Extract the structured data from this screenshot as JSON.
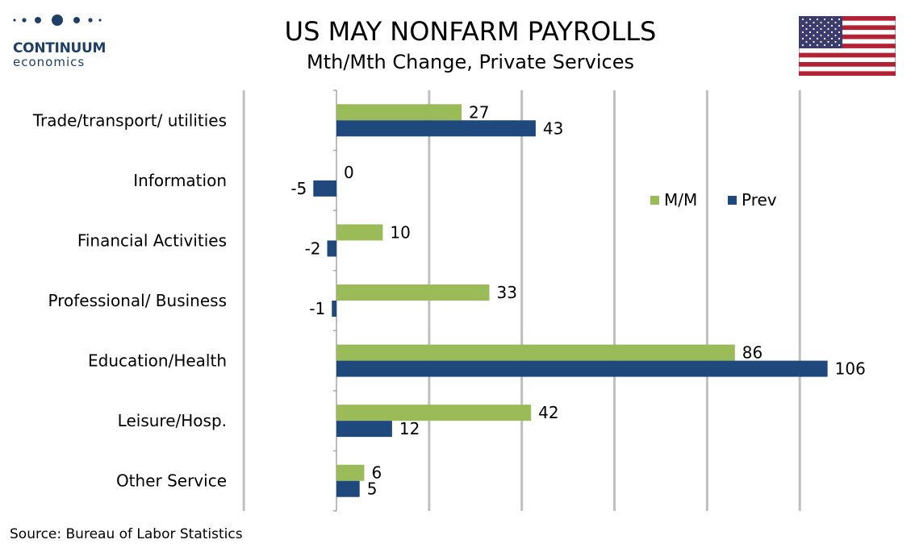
{
  "logo": {
    "name": "CONTINUUM",
    "sub": "economics",
    "color": "#1f3f66"
  },
  "header": {
    "title": "US MAY NONFARM PAYROLLS",
    "subtitle": "Mth/Mth Change, Private Services"
  },
  "flag_icon": "us-flag-icon",
  "source": "Source: Bureau of Labor Statistics",
  "chart_data": {
    "type": "bar",
    "orientation": "horizontal",
    "title": "US MAY NONFARM PAYROLLS",
    "subtitle": "Mth/Mth Change, Private Services",
    "categories": [
      "Trade/transport/ utilities",
      "Information",
      "Financial Activities",
      "Professional/ Business",
      "Education/Health",
      "Leisure/Hosp.",
      "Other Service"
    ],
    "series": [
      {
        "name": "M/M",
        "color": "#9bbb59",
        "values": [
          27,
          0,
          10,
          33,
          86,
          42,
          6
        ]
      },
      {
        "name": "Prev",
        "color": "#1f497d",
        "values": [
          43,
          -5,
          -2,
          -1,
          106,
          12,
          5
        ]
      }
    ],
    "xlim": [
      -20,
      100
    ],
    "grid": true,
    "legend": "top-right",
    "data_labels": true
  }
}
